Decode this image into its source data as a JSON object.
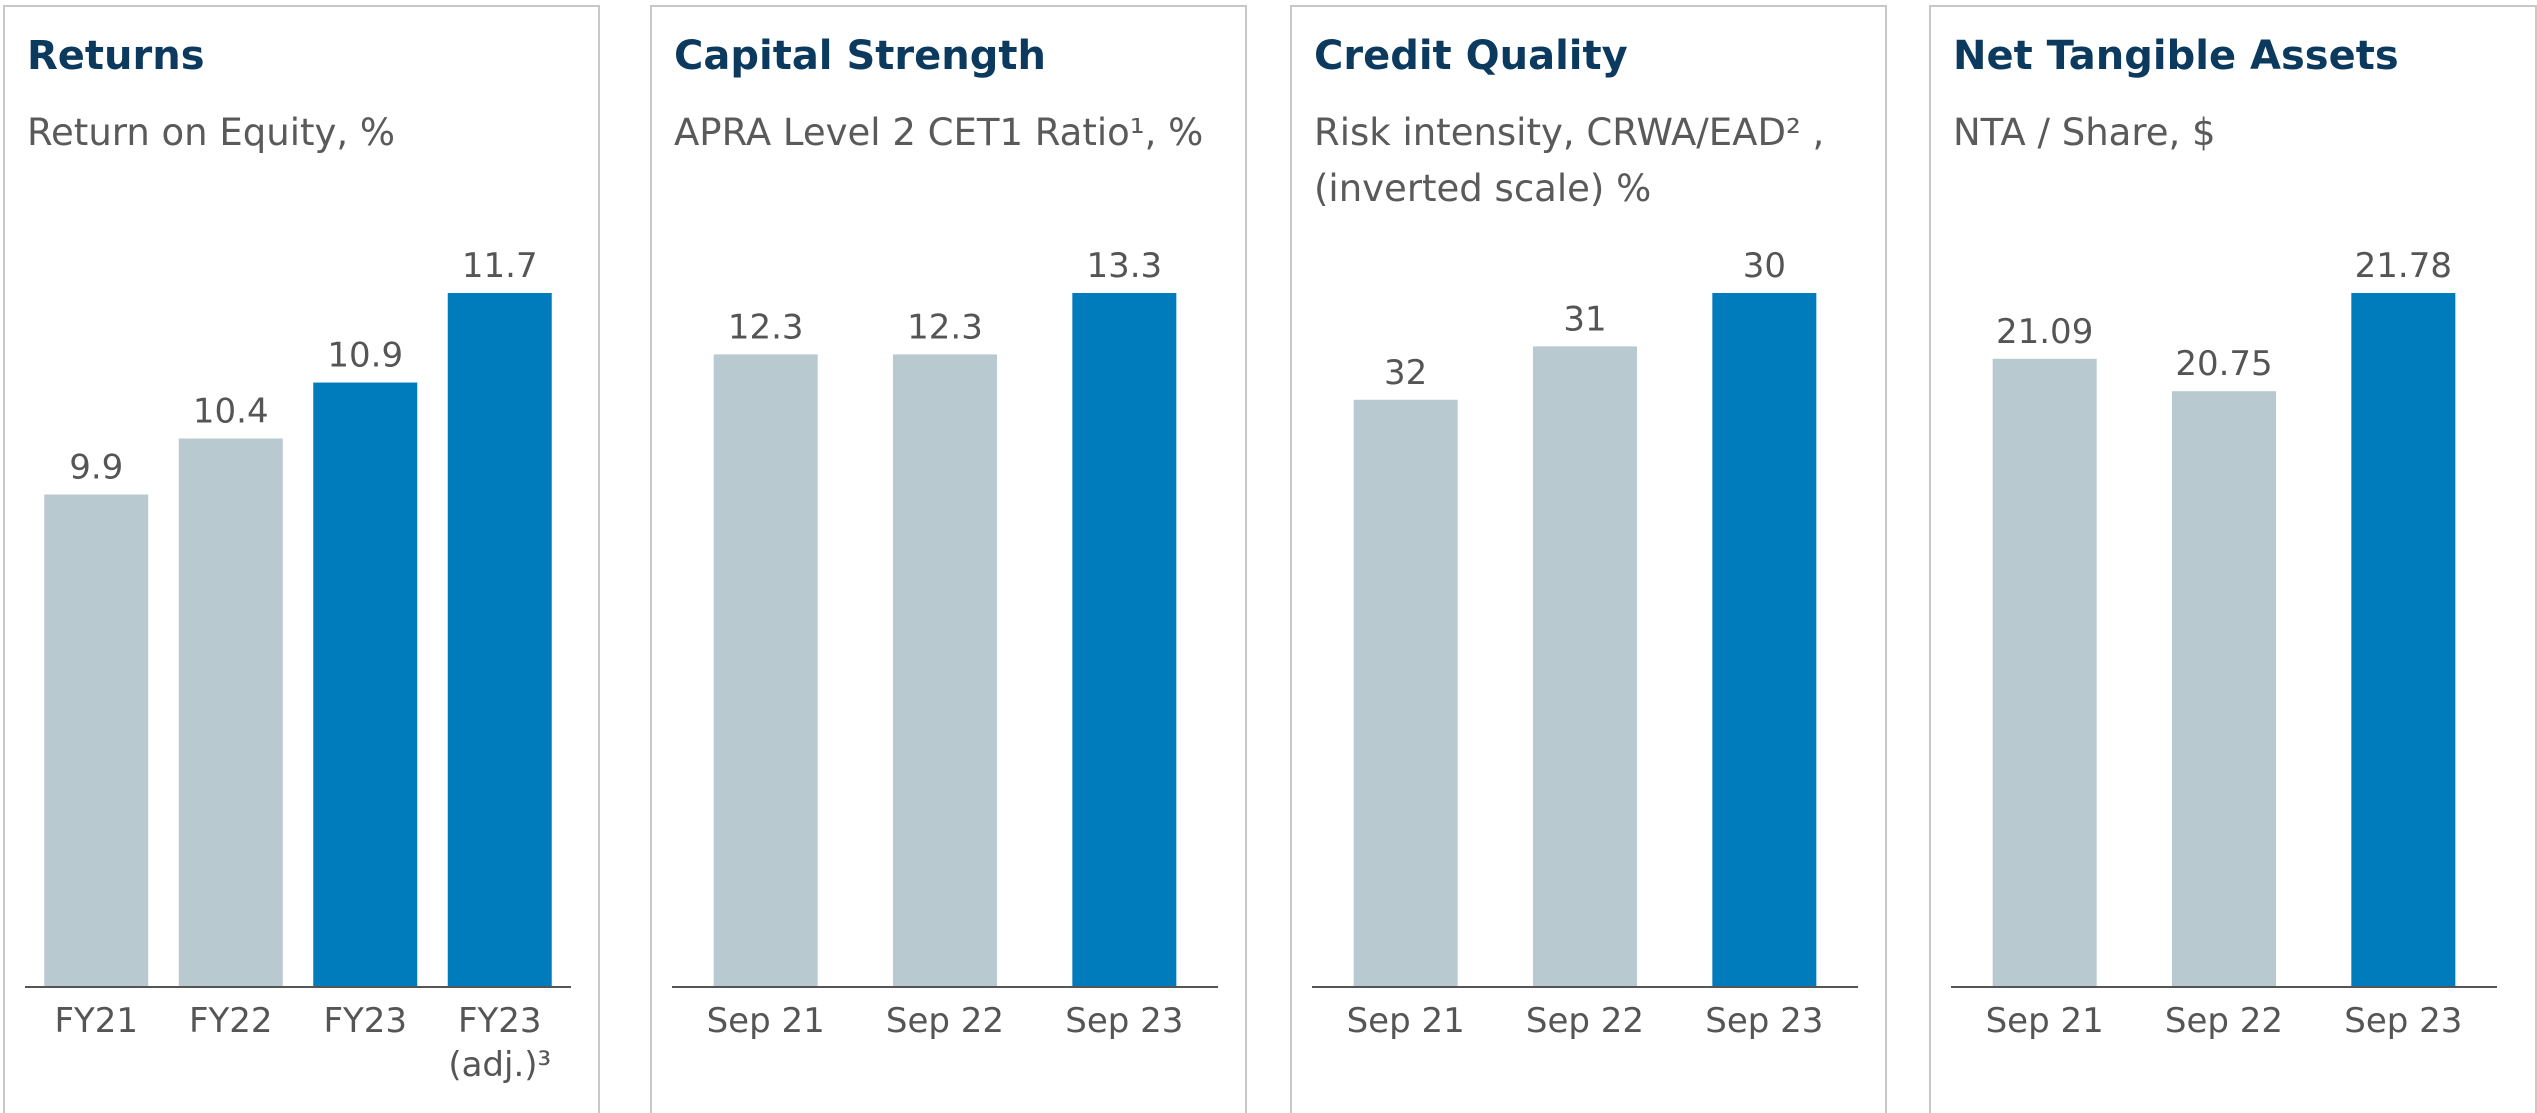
{
  "chart_data": [
    {
      "type": "bar",
      "title": "Returns",
      "subtitle": "Return on Equity, %",
      "categories": [
        "FY21",
        "FY22",
        "FY23",
        "FY23 (adj.)³"
      ],
      "values": [
        9.9,
        10.4,
        10.9,
        11.7
      ],
      "colors": [
        "#b9c9d0",
        "#b9c9d0",
        "#007bbb",
        "#007bbb"
      ],
      "ylim": [
        5.5,
        11.7
      ]
    },
    {
      "type": "bar",
      "title": "Capital Strength",
      "subtitle": "APRA Level 2 CET1 Ratio¹, %",
      "categories": [
        "Sep 21",
        "Sep 22",
        "Sep 23"
      ],
      "values": [
        12.3,
        12.3,
        13.3
      ],
      "colors": [
        "#b9c9d0",
        "#b9c9d0",
        "#007bbb"
      ],
      "ylim": [
        2,
        13.3
      ]
    },
    {
      "type": "bar",
      "title": "Credit Quality",
      "subtitle": "Risk intensity, CRWA/EAD² , (inverted scale) %",
      "categories": [
        "Sep 21",
        "Sep 22",
        "Sep 23"
      ],
      "values": [
        32,
        31,
        30
      ],
      "colors": [
        "#b9c9d0",
        "#b9c9d0",
        "#007bbb"
      ],
      "ylim": [
        43,
        30
      ]
    },
    {
      "type": "bar",
      "title": "Net Tangible Assets",
      "subtitle": "NTA / Share, $",
      "categories": [
        "Sep 21",
        "Sep 22",
        "Sep 23"
      ],
      "values": [
        21.09,
        20.75,
        21.78
      ],
      "colors": [
        "#b9c9d0",
        "#b9c9d0",
        "#007bbb"
      ],
      "ylim": [
        14.5,
        21.78
      ]
    }
  ]
}
